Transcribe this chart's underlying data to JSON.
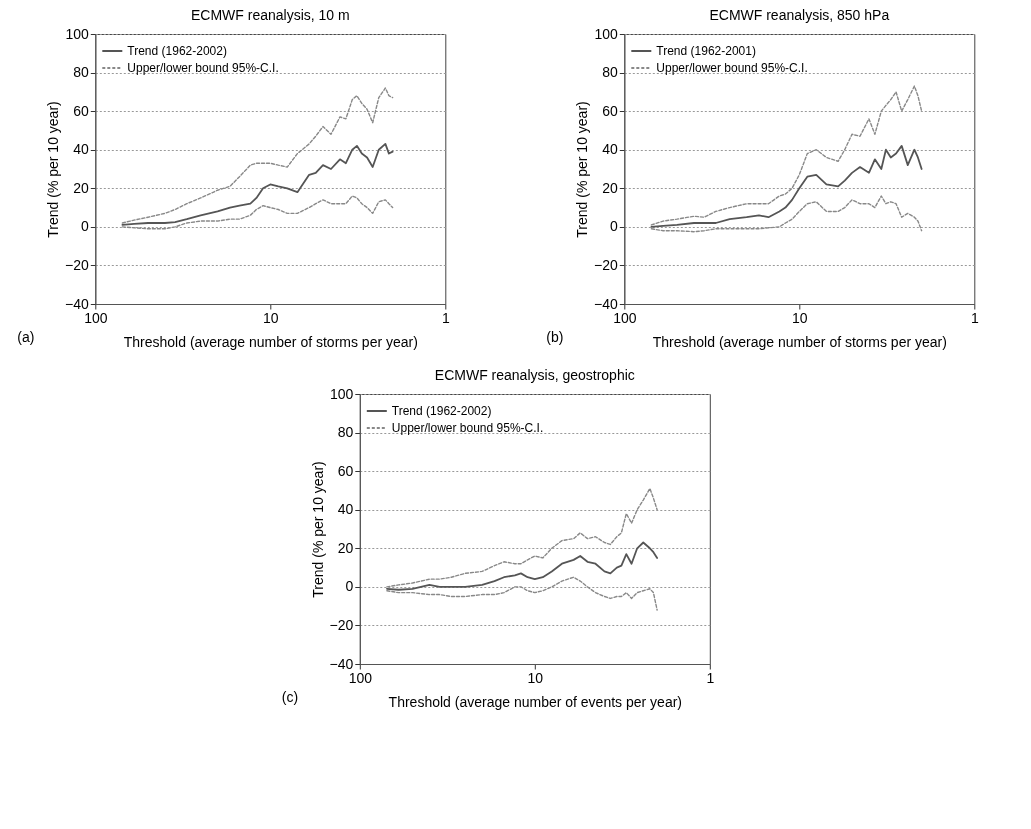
{
  "chart_data": [
    {
      "type": "line",
      "title": "ECMWF reanalysis, 10 m",
      "xlabel": "Threshold (average number of storms per year)",
      "ylabel": "Trend (% per 10 year)",
      "annotations": [
        "(a)"
      ],
      "log": "x",
      "xlim": [
        100,
        1
      ],
      "xticks": [
        100,
        10,
        1
      ],
      "ylim": [
        -40,
        100
      ],
      "yticks": [
        -40,
        -20,
        0,
        20,
        40,
        60,
        80,
        100
      ],
      "grid": "y",
      "legend": "top left",
      "x": [
        70,
        60,
        50,
        40,
        35,
        30,
        25,
        20,
        17,
        15,
        13,
        12,
        11,
        10,
        9,
        8,
        7,
        6,
        5.5,
        5,
        4.5,
        4,
        3.7,
        3.4,
        3.2,
        3,
        2.8,
        2.6,
        2.4,
        2.2,
        2.1,
        2.0
      ],
      "series": [
        {
          "name": "Trend (1962-2002)",
          "color": "#555555",
          "line_style": "solid",
          "values": [
            1,
            1.5,
            2,
            2,
            2.5,
            4,
            6,
            8,
            10,
            11,
            12,
            15,
            20,
            22,
            21,
            20,
            18,
            27,
            28,
            32,
            30,
            35,
            33,
            40,
            42,
            38,
            36,
            31,
            40,
            43,
            38,
            39
          ]
        },
        {
          "name": "Upper/lower bound 95%-C.I.",
          "color": "#888888",
          "line_style": "dashed",
          "values": [
            2,
            3.5,
            5,
            7,
            9,
            12,
            15,
            19,
            21,
            26,
            32,
            33,
            33,
            33,
            32,
            31,
            38,
            43,
            47,
            52,
            48,
            57,
            56,
            66,
            68,
            64,
            61,
            54,
            67,
            72,
            68,
            67
          ]
        },
        {
          "color": "#888888",
          "line_style": "dashed",
          "values": [
            0,
            -0.5,
            -1,
            -1,
            0,
            2,
            3,
            3,
            4,
            4,
            6,
            9,
            11,
            10,
            9,
            7,
            7,
            10,
            12,
            14,
            12,
            12,
            12,
            16,
            15,
            12,
            10,
            7,
            13,
            14,
            12,
            10
          ]
        }
      ]
    },
    {
      "type": "line",
      "title": "ECMWF reanalysis, 850 hPa",
      "xlabel": "Threshold (average number of storms per year)",
      "ylabel": "Trend (% per 10 year)",
      "annotations": [
        "(b)"
      ],
      "log": "x",
      "xlim": [
        100,
        1
      ],
      "xticks": [
        100,
        10,
        1
      ],
      "ylim": [
        -40,
        100
      ],
      "yticks": [
        -40,
        -20,
        0,
        20,
        40,
        60,
        80,
        100
      ],
      "grid": "y",
      "legend": "top left",
      "x": [
        70,
        60,
        50,
        40,
        35,
        30,
        25,
        20,
        17,
        15,
        13,
        12,
        11,
        10,
        9,
        8,
        7,
        6,
        5.5,
        5,
        4.5,
        4,
        3.7,
        3.4,
        3.2,
        3,
        2.8,
        2.6,
        2.4,
        2.2,
        2.1,
        2.0
      ],
      "series": [
        {
          "name": "Trend (1962-2001)",
          "color": "#555555",
          "line_style": "solid",
          "values": [
            0,
            0.5,
            1,
            2,
            2,
            2,
            4,
            5,
            6,
            5,
            8,
            10,
            14,
            20,
            26,
            27,
            22,
            21,
            24,
            28,
            31,
            28,
            35,
            30,
            40,
            36,
            38,
            42,
            32,
            40,
            36,
            30
          ]
        },
        {
          "name": "Upper/lower bound 95%-C.I.",
          "color": "#888888",
          "line_style": "dashed",
          "values": [
            1,
            3,
            4,
            5.5,
            5,
            8,
            10,
            12,
            12,
            12,
            16,
            17,
            20,
            27,
            38,
            40,
            36,
            34,
            40,
            48,
            47,
            56,
            48,
            60,
            63,
            66,
            70,
            60,
            66,
            73,
            68,
            60
          ]
        },
        {
          "color": "#888888",
          "line_style": "dashed",
          "values": [
            -1,
            -2,
            -2,
            -2.5,
            -2,
            -1,
            -1,
            -1,
            -1,
            -0.5,
            0,
            2,
            4,
            8,
            12,
            13,
            8,
            8,
            10,
            14,
            12,
            12,
            10,
            16,
            12,
            13,
            12,
            5,
            7,
            5,
            3,
            -2
          ]
        }
      ]
    },
    {
      "type": "line",
      "title": "ECMWF reanalysis, geostrophic",
      "xlabel": "Threshold (average number of events per year)",
      "ylabel": "Trend (% per 10 year)",
      "annotations": [
        "(c)"
      ],
      "log": "x",
      "xlim": [
        100,
        1
      ],
      "xticks": [
        100,
        10,
        1
      ],
      "ylim": [
        -40,
        100
      ],
      "yticks": [
        -40,
        -20,
        0,
        20,
        40,
        60,
        80,
        100
      ],
      "grid": "y",
      "legend": "top left",
      "x": [
        70,
        60,
        50,
        40,
        35,
        30,
        25,
        20,
        17,
        15,
        13,
        12,
        11,
        10,
        9,
        8,
        7,
        6,
        5.5,
        5,
        4.5,
        4,
        3.7,
        3.4,
        3.2,
        3,
        2.8,
        2.6,
        2.4,
        2.2,
        2.1,
        2.0
      ],
      "series": [
        {
          "name": "Trend (1962-2002)",
          "color": "#555555",
          "line_style": "solid",
          "values": [
            -1,
            -1.5,
            -1,
            1,
            0,
            0,
            0,
            1,
            3,
            5,
            6,
            7,
            5,
            4,
            5,
            8,
            12,
            14,
            16,
            13,
            12,
            8,
            7,
            10,
            11,
            17,
            12,
            20,
            23,
            20,
            18,
            15
          ]
        },
        {
          "name": "Upper/lower bound 95%-C.I.",
          "color": "#888888",
          "line_style": "dashed",
          "values": [
            0,
            1,
            2,
            4,
            4,
            5,
            7,
            8,
            11,
            13,
            12,
            12,
            14,
            16,
            15,
            20,
            24,
            25,
            28,
            25,
            26,
            23,
            22,
            26,
            28,
            38,
            33,
            40,
            45,
            51,
            46,
            40
          ]
        },
        {
          "color": "#888888",
          "line_style": "dashed",
          "values": [
            -2,
            -3,
            -3,
            -4,
            -4,
            -5,
            -5,
            -4,
            -4,
            -3,
            0,
            0,
            -2,
            -3,
            -2,
            0,
            3,
            5,
            3,
            0,
            -3,
            -5,
            -6,
            -5,
            -5,
            -3,
            -6,
            -3,
            -2,
            -1,
            -3,
            -12
          ]
        }
      ]
    }
  ]
}
